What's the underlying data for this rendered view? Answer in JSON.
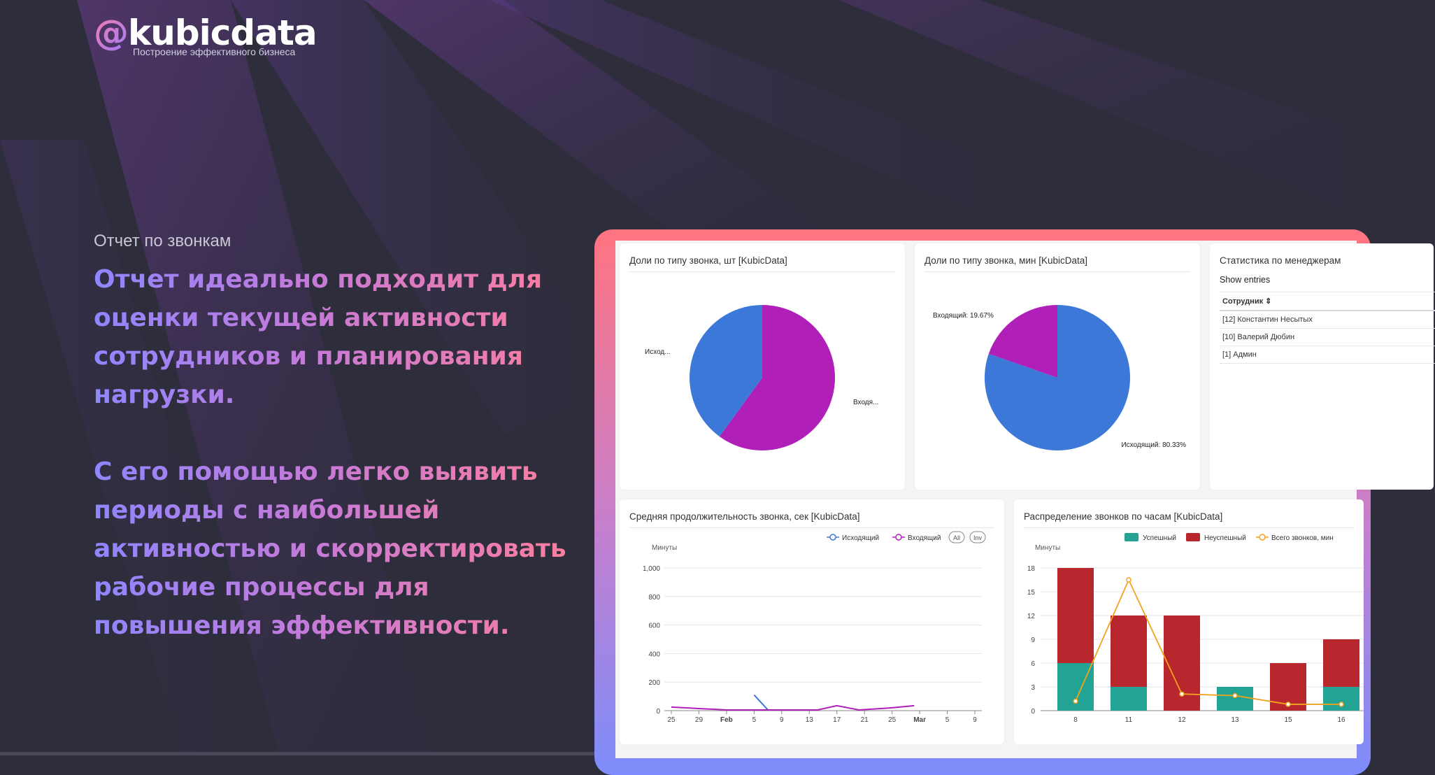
{
  "brand": {
    "logo_at": "@",
    "logo_text": "kubicdata",
    "tagline": "Построение эффективного бизнеса"
  },
  "intro": {
    "section_title": "Отчет по звонкам",
    "paragraph_1": "Отчет идеально подходит для оценки текущей активности сотрудников и планирования нагрузки.",
    "paragraph_2": "С его помощью легко выявить периоды с наибольшей активностью и скорректировать рабочие процессы для повышения эффективности."
  },
  "colors": {
    "background": "#2e2d3c",
    "outgoing_blue": "#3c78d8",
    "incoming_purple": "#b020b8",
    "success_teal": "#22a393",
    "fail_red": "#b8272d",
    "total_orange": "#f0a31e"
  },
  "dashboard": {
    "pie_count_title": "Доли по типу звонка, шт [KubicData]",
    "pie_minutes_title": "Доли по типу звонка, мин [KubicData]",
    "stats_title": "Статистика по менеджерам",
    "show_entries": "Show entries",
    "stats_column": "Сотрудник ⇕",
    "managers": [
      "[12] Константин Несытых",
      "[10] Валерий Дюбин",
      "[1] Админ"
    ],
    "avg_duration_title": "Средняя продолжительность звонка, сек [KubicData]",
    "by_hour_title": "Распределение звонков по часам [KubicData]"
  },
  "chart_data": [
    {
      "type": "pie",
      "title": "Доли по типу звонка, шт [KubicData]",
      "labels": [
        "Исход...",
        "Входя..."
      ],
      "values": [
        40,
        60
      ],
      "colors": [
        "#3c78d8",
        "#b020b8"
      ]
    },
    {
      "type": "pie",
      "title": "Доли по типу звонка, мин [KubicData]",
      "labels": [
        "Исходящий: 80.33%",
        "Входящий: 19.67%"
      ],
      "values": [
        80.33,
        19.67
      ],
      "colors": [
        "#3c78d8",
        "#b020b8"
      ]
    },
    {
      "type": "line",
      "title": "Средняя продолжительность звонка, сек [KubicData]",
      "ylabel": "Минуты",
      "ylim": [
        0,
        1000
      ],
      "yticks": [
        "0",
        "200",
        "400",
        "600",
        "800",
        "1,000"
      ],
      "xticks": [
        "25",
        "29",
        "Feb",
        "5",
        "9",
        "13",
        "17",
        "21",
        "25",
        "Mar",
        "5",
        "9"
      ],
      "legend": [
        "Исходящий",
        "Входящий",
        "All",
        "Inv"
      ],
      "series": [
        {
          "name": "Исходящий",
          "color": "#3c78d8",
          "x": [
            3.0,
            3.5
          ],
          "values": [
            110,
            5
          ]
        },
        {
          "name": "Входящий",
          "color": "#b020b8",
          "x": [
            0,
            1,
            2,
            4.8,
            5.3,
            6,
            6.8,
            8,
            8.8
          ],
          "values": [
            25,
            15,
            5,
            5,
            5,
            35,
            5,
            20,
            35
          ]
        }
      ]
    },
    {
      "type": "bar",
      "title": "Распределение звонков по часам [KubicData]",
      "ylabel": "Минуты",
      "ylim": [
        0,
        18
      ],
      "yticks": [
        "0",
        "3",
        "6",
        "9",
        "12",
        "15",
        "18"
      ],
      "categories": [
        "8",
        "11",
        "12",
        "13",
        "15",
        "16"
      ],
      "legend": [
        "Успешный",
        "Неуспешный",
        "Всего звонков, мин"
      ],
      "series": [
        {
          "name": "Успешный",
          "color": "#22a393",
          "values": [
            6,
            3,
            0,
            3,
            0,
            3
          ]
        },
        {
          "name": "Неуспешный",
          "color": "#b8272d",
          "values": [
            12,
            9,
            12,
            0,
            6,
            6
          ]
        },
        {
          "name": "Всего звонков, мин",
          "color": "#f0a31e",
          "values": [
            1.2,
            16.5,
            2.1,
            1.9,
            0.8,
            0.8
          ]
        }
      ]
    }
  ]
}
